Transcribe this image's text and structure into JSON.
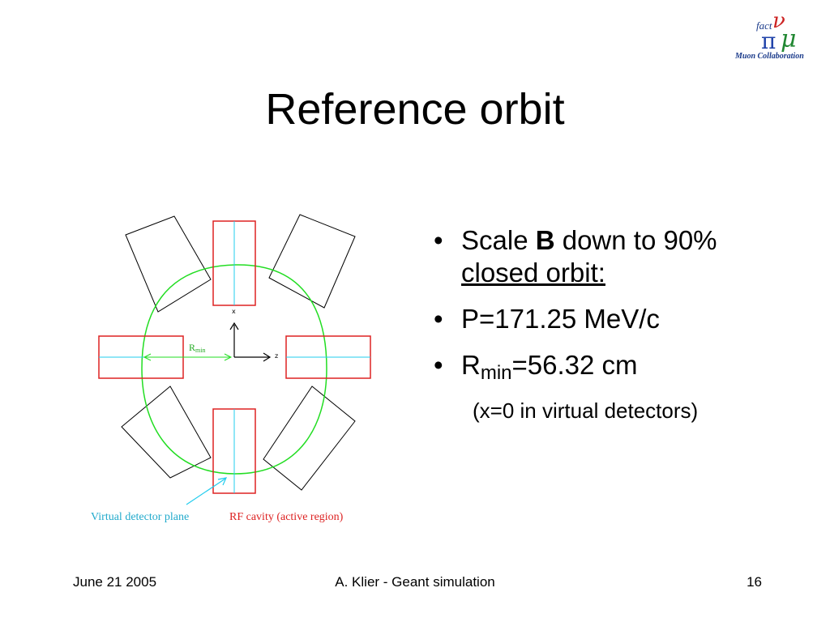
{
  "slide": {
    "title": "Reference orbit",
    "logo": {
      "word": "fact",
      "text": "Muon Collaboration"
    },
    "bullets": [
      {
        "pre": "Scale ",
        "bold": "B",
        "post": " down to 90%",
        "line2": "closed orbit:"
      },
      {
        "text": "P=171.25 MeV/c"
      },
      {
        "main": "R",
        "sub": "min",
        "post": "=56.32 cm"
      }
    ],
    "bullet_note": "(x=0 in virtual detectors)",
    "bullet_symbol": "•"
  },
  "diagram": {
    "axis_x": "x",
    "axis_z": "z",
    "rmin_main": "R",
    "rmin_sub": "min",
    "caption_detector": "Virtual detector plane",
    "caption_cavity": "RF cavity (active region)",
    "colors": {
      "orbit": "#22dd22",
      "cavity": "#dd2222",
      "detector": "#22ccee",
      "magnet": "#000000"
    }
  },
  "footer": {
    "date": "June 21 2005",
    "author": "A. Klier - Geant simulation",
    "page": "16"
  }
}
